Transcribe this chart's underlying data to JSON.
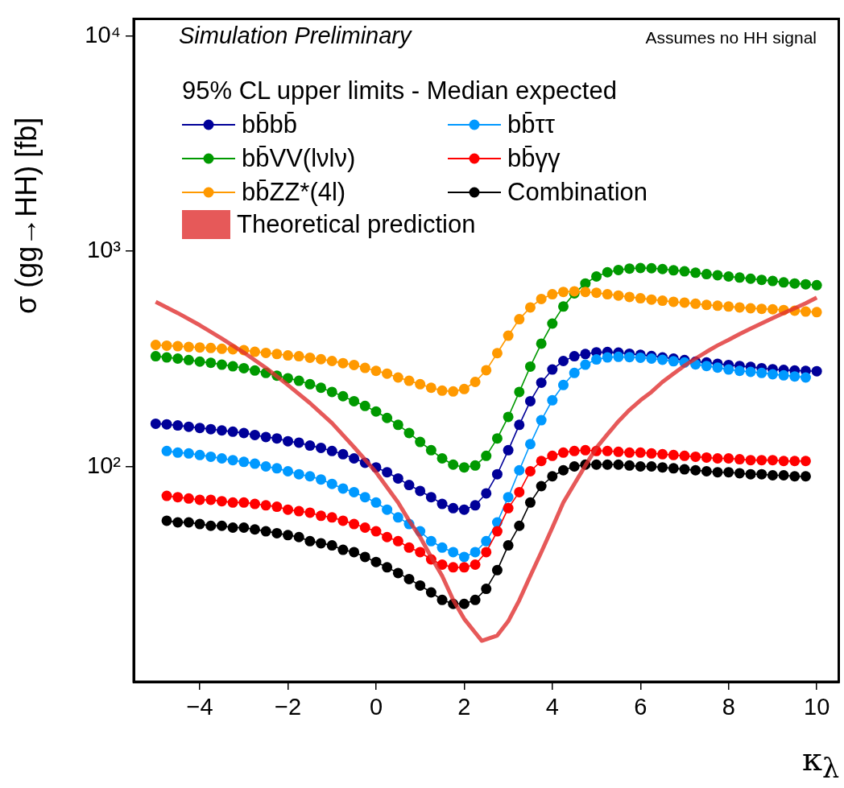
{
  "chart_data": {
    "type": "line",
    "xlabel": "κ$_{λ}$",
    "ylabel": "σ (gg→HH) [fb]",
    "legend_title": "95% CL upper limits - Median expected",
    "legend": "top left",
    "grid": false,
    "log": "y",
    "marker": "circle",
    "annotations": [
      "Simulation Preliminary",
      "Assumes no HH signal"
    ],
    "xlim": [
      -5.5,
      10.5
    ],
    "xticks": [
      {
        "value": -4,
        "label": "−4"
      },
      {
        "value": -2,
        "label": "−2"
      },
      0,
      2,
      4,
      6,
      8,
      10
    ],
    "ylim": [
      10,
      12000
    ],
    "yticks": [
      {
        "value": 100,
        "label": "10²"
      },
      {
        "value": 1000,
        "label": "10³"
      },
      {
        "value": 10000,
        "label": "10⁴"
      }
    ],
    "x": [
      -5,
      -4.75,
      -4.5,
      -4.25,
      -4,
      -3.75,
      -3.5,
      -3.25,
      -3,
      -2.75,
      -2.5,
      -2.25,
      -2,
      -1.75,
      -1.5,
      -1.25,
      -1,
      -0.75,
      -0.5,
      -0.25,
      0,
      0.25,
      0.5,
      0.75,
      1,
      1.25,
      1.5,
      1.75,
      2,
      2.25,
      2.5,
      2.75,
      3,
      3.25,
      3.5,
      3.75,
      4,
      4.25,
      4.5,
      4.75,
      5,
      5.25,
      5.5,
      5.75,
      6,
      6.25,
      6.5,
      6.75,
      7,
      7.25,
      7.5,
      7.75,
      8,
      8.25,
      8.5,
      8.75,
      9,
      9.25,
      9.5,
      9.75,
      10
    ],
    "series": [
      {
        "name": "bb̄bb̄",
        "color": "#000099",
        "values": [
          158,
          157,
          155,
          153,
          151,
          149,
          147,
          145,
          143,
          140,
          137,
          135,
          131,
          129,
          125,
          122,
          118,
          114,
          109,
          104,
          99,
          94,
          88,
          82,
          77,
          72,
          67,
          64,
          63,
          66,
          75,
          92,
          119,
          156,
          201,
          245,
          282,
          309,
          325,
          333,
          339,
          340,
          338,
          334,
          330,
          326,
          321,
          317,
          312,
          307,
          304,
          300,
          296,
          293,
          290,
          286,
          283,
          281,
          279,
          278,
          277
        ]
      },
      {
        "name": "bb̄ττ",
        "color": "#0099ff",
        "values": [
          null,
          118,
          116,
          115,
          113,
          111,
          109,
          107,
          105,
          103,
          100,
          98,
          95,
          92,
          90,
          87,
          83,
          79,
          76,
          72,
          68,
          63,
          58,
          54,
          50,
          45,
          42,
          40,
          38,
          40,
          45,
          55,
          72,
          96,
          127,
          164,
          203,
          239,
          272,
          297,
          314,
          321,
          323,
          322,
          320,
          317,
          313,
          308,
          304,
          298,
          293,
          288,
          282,
          278,
          275,
          272,
          268,
          265,
          262,
          259,
          null
        ]
      },
      {
        "name": "bb̄VV(lνlν)",
        "color": "#009900",
        "values": [
          325,
          321,
          317,
          312,
          307,
          303,
          297,
          292,
          286,
          279,
          272,
          264,
          257,
          250,
          241,
          232,
          222,
          212,
          201,
          191,
          180,
          168,
          156,
          143,
          130,
          119,
          109,
          102,
          99,
          101,
          112,
          135,
          170,
          222,
          291,
          372,
          461,
          553,
          637,
          708,
          763,
          798,
          818,
          830,
          835,
          833,
          826,
          815,
          806,
          794,
          782,
          773,
          763,
          754,
          745,
          736,
          727,
          716,
          708,
          702,
          695
        ]
      },
      {
        "name": "bb̄γγ",
        "color": "#ff0000",
        "values": [
          null,
          73,
          72,
          71,
          70,
          70,
          69,
          68,
          68,
          67,
          66,
          65,
          63,
          62,
          61,
          59,
          58,
          56,
          54,
          52,
          50,
          47,
          45,
          42,
          40,
          37,
          35,
          34,
          34,
          35,
          40,
          50,
          64,
          76,
          95,
          106,
          112,
          116,
          118,
          119,
          118,
          118,
          117,
          116,
          116,
          115,
          114,
          113,
          112,
          111,
          110,
          109,
          109,
          108,
          107,
          107,
          107,
          106,
          106,
          106,
          null
        ]
      },
      {
        "name": "bb̄ZZ*(4l)",
        "color": "#ff9900",
        "values": [
          367,
          364,
          362,
          359,
          357,
          355,
          352,
          350,
          347,
          341,
          337,
          333,
          328,
          325,
          320,
          315,
          309,
          302,
          296,
          287,
          278,
          270,
          259,
          250,
          241,
          232,
          225,
          223,
          229,
          247,
          280,
          336,
          405,
          483,
          548,
          600,
          631,
          647,
          651,
          647,
          641,
          631,
          622,
          613,
          604,
          596,
          589,
          582,
          577,
          570,
          563,
          558,
          553,
          548,
          543,
          540,
          537,
          533,
          529,
          524,
          521
        ]
      },
      {
        "name": "Combination",
        "color": "#000000",
        "values": [
          null,
          56,
          55,
          55,
          54,
          53,
          53,
          52,
          52,
          51,
          50,
          49,
          48,
          47,
          45,
          44,
          43,
          41,
          40,
          38,
          36,
          34,
          32,
          30,
          28,
          26,
          24,
          23,
          23,
          24,
          27,
          33,
          43,
          53,
          68,
          81,
          90,
          96,
          100,
          102,
          102,
          102,
          102,
          101,
          100,
          100,
          99,
          98,
          97,
          96,
          95,
          94,
          94,
          93,
          92,
          92,
          91,
          91,
          90,
          90,
          null
        ]
      },
      {
        "name": "Theoretical prediction",
        "color": "#e03030",
        "marker": "none",
        "x": [
          -5,
          -4.5,
          -4,
          -3.5,
          -3,
          -2.5,
          -2,
          -1.5,
          -1,
          -0.5,
          0,
          0.25,
          0.5,
          0.75,
          1,
          1.25,
          1.5,
          1.75,
          2,
          2.25,
          2.4,
          2.75,
          3,
          3.25,
          3.5,
          3.75,
          4,
          4.25,
          4.5,
          4.75,
          5,
          5.25,
          5.5,
          5.75,
          6,
          6.25,
          6.5,
          6.75,
          7,
          7.25,
          7.5,
          7.75,
          8,
          8.25,
          8.5,
          8.75,
          9,
          9.25,
          9.5,
          9.75,
          10
        ],
        "values": [
          582,
          516,
          453,
          393,
          338,
          287,
          239,
          197,
          159,
          123,
          94,
          80,
          68,
          56,
          47,
          38,
          31,
          24,
          19.6,
          16.9,
          15.5,
          16.4,
          19.1,
          23.9,
          31,
          40,
          52,
          68,
          83,
          101,
          122,
          141,
          162,
          183,
          203,
          222,
          247,
          270,
          294,
          317,
          341,
          365,
          387,
          412,
          437,
          462,
          489,
          516,
          543,
          573,
          609
        ]
      }
    ]
  }
}
